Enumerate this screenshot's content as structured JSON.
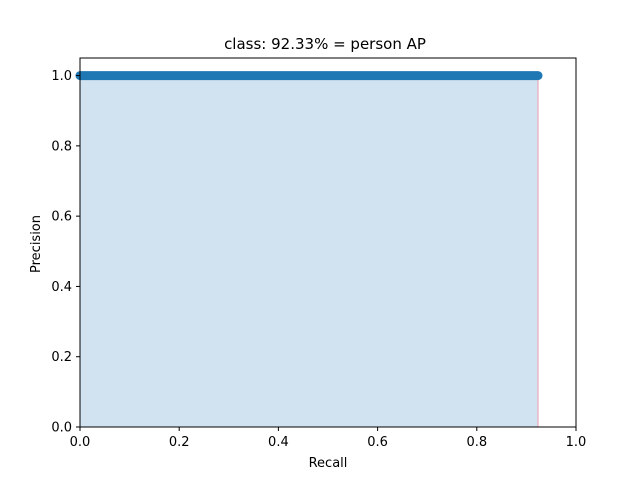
{
  "chart_data": {
    "type": "area",
    "title": "class: 92.33% = person AP",
    "xlabel": "Recall",
    "ylabel": "Precision",
    "xlim": [
      0.0,
      1.0
    ],
    "ylim": [
      0.0,
      1.05
    ],
    "xticks": [
      "0.0",
      "0.2",
      "0.4",
      "0.6",
      "0.8",
      "1.0"
    ],
    "yticks": [
      "0.0",
      "0.2",
      "0.4",
      "0.6",
      "0.8",
      "1.0"
    ],
    "grid": false,
    "legend": "none",
    "series": [
      {
        "x": [
          0.0,
          0.9233
        ],
        "y": [
          1.0,
          1.0
        ],
        "line_color": "#1f77b4",
        "fill_color": "#d1e3f0",
        "edge_color": "#e8b8c4"
      }
    ]
  }
}
